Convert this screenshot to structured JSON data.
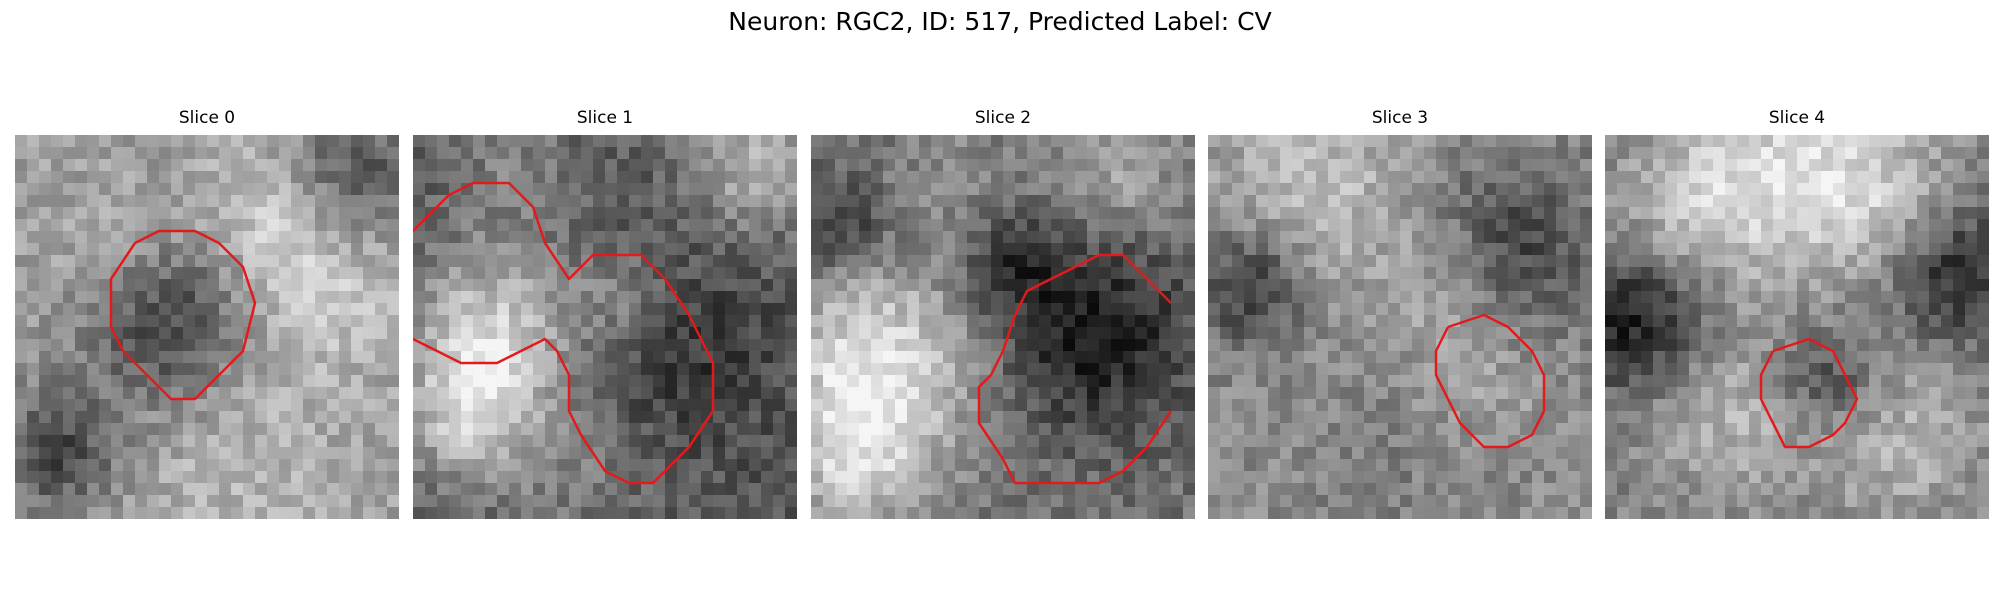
{
  "figure": {
    "title": "Neuron: RGC2, ID: 517, Predicted Label: CV",
    "outline_color": "#e31a1c",
    "colormap": "gray"
  },
  "panels": [
    {
      "title": "Slice 0"
    },
    {
      "title": "Slice 1"
    },
    {
      "title": "Slice 2"
    },
    {
      "title": "Slice 3"
    },
    {
      "title": "Slice 4"
    }
  ]
}
